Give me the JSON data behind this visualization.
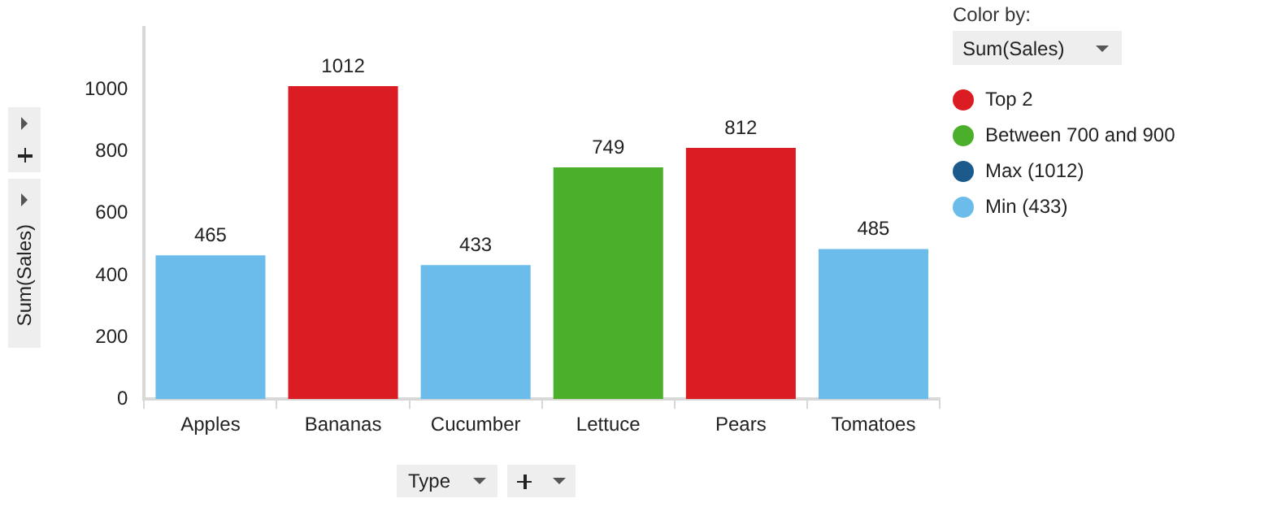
{
  "chart_data": {
    "type": "bar",
    "stacked": true,
    "categories": [
      "Apples",
      "Bananas",
      "Cucumber",
      "Lettuce",
      "Pears",
      "Tomatoes"
    ],
    "series": [
      {
        "name": "Top 2",
        "color": "#dc1c23",
        "values": [
          null,
          1012,
          null,
          null,
          812,
          null
        ]
      },
      {
        "name": "Between 700 and 900",
        "color": "#4caf2b",
        "values": [
          null,
          null,
          null,
          749,
          null,
          null
        ]
      },
      {
        "name": "Max (1012)",
        "color": "#1b5a8a",
        "values": [
          null,
          null,
          null,
          null,
          null,
          null
        ]
      },
      {
        "name": "Min (433)",
        "color": "#6bbcea",
        "values": [
          465,
          null,
          433,
          null,
          null,
          485
        ]
      }
    ],
    "ylim": [
      0,
      1200
    ],
    "yticks": [
      0,
      200,
      400,
      600,
      800,
      1000
    ],
    "ylabel": "Sum(Sales)",
    "xlabel": "Type",
    "legend_title": "Color by:",
    "annotations": [
      "Sum(Sales)"
    ],
    "legend": "right",
    "data_labels": true,
    "grid": false
  }
}
